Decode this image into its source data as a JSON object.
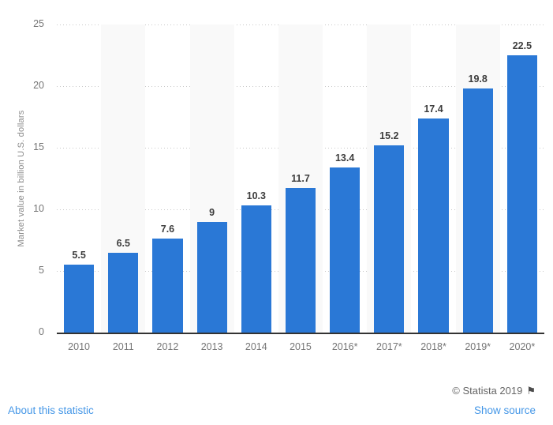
{
  "chart_data": {
    "type": "bar",
    "title": "",
    "categories": [
      "2010",
      "2011",
      "2012",
      "2013",
      "2014",
      "2015",
      "2016*",
      "2017*",
      "2018*",
      "2019*",
      "2020*"
    ],
    "values": [
      5.5,
      6.5,
      7.6,
      9,
      10.3,
      11.7,
      13.4,
      15.2,
      17.4,
      19.8,
      22.5
    ],
    "value_labels": [
      "5.5",
      "6.5",
      "7.6",
      "9",
      "10.3",
      "11.7",
      "13.4",
      "15.2",
      "17.4",
      "19.8",
      "22.5"
    ],
    "xlabel": "",
    "ylabel": "Market value in billion U.S. dollars",
    "ylim": [
      0,
      25
    ],
    "yticks": [
      25,
      20,
      15,
      10,
      5,
      0
    ],
    "grid": "horizontal-dotted",
    "legend": "none",
    "bar_color": "#2a78d6",
    "stripe_color": "#f9f9f9",
    "striped_categories": [
      "2011",
      "2013",
      "2015",
      "2017*",
      "2019*"
    ]
  },
  "footer": {
    "copyright": "© Statista 2019",
    "flag_icon": "⚑",
    "about_link": "About this statistic",
    "source_link": "Show source"
  }
}
